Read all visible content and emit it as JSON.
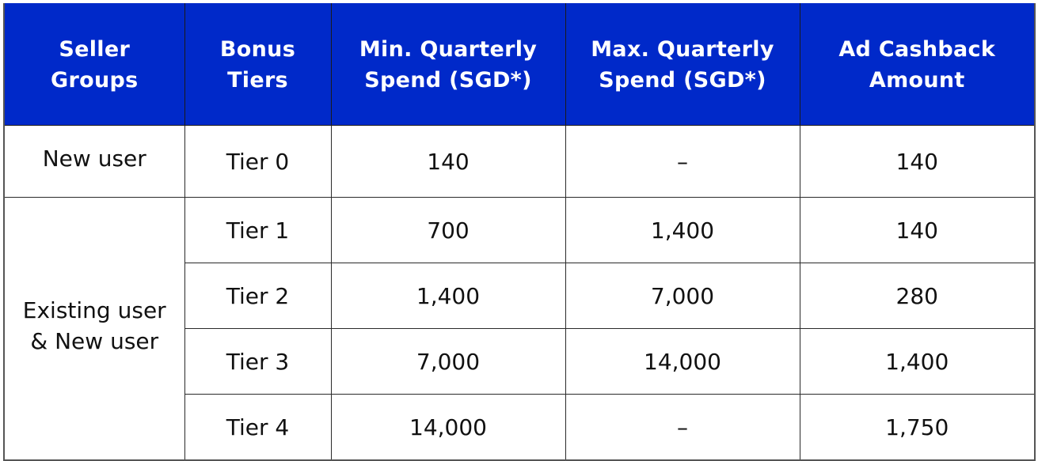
{
  "table": {
    "headers": [
      {
        "line1": "Seller",
        "line2": "Groups"
      },
      {
        "line1": "Bonus",
        "line2": "Tiers"
      },
      {
        "line1": "Min. Quarterly",
        "line2": "Spend (SGD*)"
      },
      {
        "line1": "Max. Quarterly",
        "line2": "Spend (SGD*)"
      },
      {
        "line1": "Ad Cashback",
        "line2": "Amount"
      }
    ],
    "groups": [
      {
        "line1": "New user",
        "line2": ""
      },
      {
        "line1": "Existing user",
        "line2": "& New user"
      }
    ],
    "rows": [
      {
        "tier": "Tier 0",
        "min": "140",
        "max": "–",
        "cashback": "140"
      },
      {
        "tier": "Tier 1",
        "min": "700",
        "max": "1,400",
        "cashback": "140"
      },
      {
        "tier": "Tier 2",
        "min": "1,400",
        "max": "7,000",
        "cashback": "280"
      },
      {
        "tier": "Tier 3",
        "min": "7,000",
        "max": "14,000",
        "cashback": "1,400"
      },
      {
        "tier": "Tier 4",
        "min": "14,000",
        "max": "–",
        "cashback": "1,750"
      }
    ]
  },
  "colors": {
    "header_bg": "#0029c9",
    "header_text": "#ffffff",
    "body_text": "#111111"
  }
}
